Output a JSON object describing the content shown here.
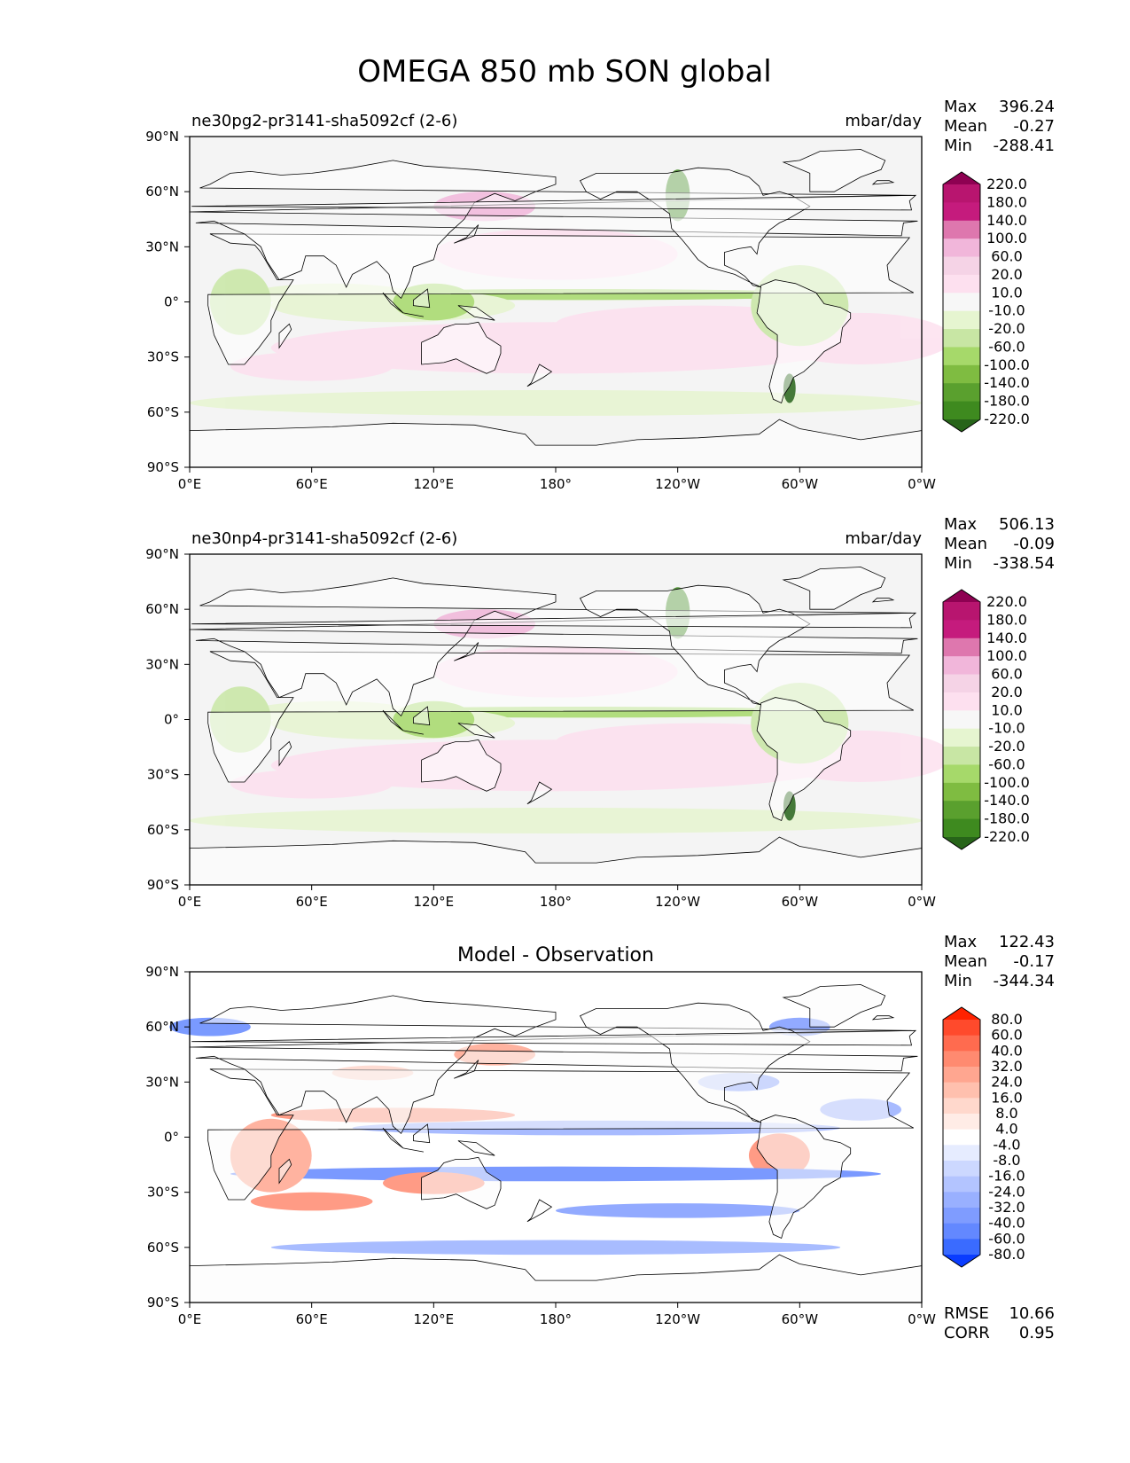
{
  "figure": {
    "title": "OMEGA 850 mb SON global"
  },
  "x_ticks": [
    "0°E",
    "60°E",
    "120°E",
    "180°",
    "120°W",
    "60°W",
    "0°W"
  ],
  "y_ticks": [
    "90°N",
    "60°N",
    "30°N",
    "0°",
    "30°S",
    "60°S",
    "90°S"
  ],
  "stat_labels": {
    "max": "Max",
    "mean": "Mean",
    "min": "Min",
    "rmse": "RMSE",
    "corr": "CORR"
  },
  "panels": [
    {
      "left_title": "ne30pg2-pr3141-sha5092cf (2-6)",
      "center_title": "",
      "units": "mbar/day",
      "stats": {
        "max": "396.24",
        "mean": "-0.27",
        "min": "-288.41"
      },
      "colorbar_labels": [
        "220.0",
        "180.0",
        "140.0",
        "100.0",
        "60.0",
        "20.0",
        "10.0",
        "-10.0",
        "-20.0",
        "-60.0",
        "-100.0",
        "-140.0",
        "-180.0",
        "-220.0"
      ]
    },
    {
      "left_title": "ne30np4-pr3141-sha5092cf (2-6)",
      "center_title": "",
      "units": "mbar/day",
      "stats": {
        "max": "506.13",
        "mean": "-0.09",
        "min": "-338.54"
      },
      "colorbar_labels": [
        "220.0",
        "180.0",
        "140.0",
        "100.0",
        "60.0",
        "20.0",
        "10.0",
        "-10.0",
        "-20.0",
        "-60.0",
        "-100.0",
        "-140.0",
        "-180.0",
        "-220.0"
      ]
    },
    {
      "left_title": "",
      "center_title": "Model - Observation",
      "units": "",
      "stats": {
        "max": "122.43",
        "mean": "-0.17",
        "min": "-344.34",
        "rmse": "10.66",
        "corr": "0.95"
      },
      "colorbar_labels": [
        "80.0",
        "60.0",
        "40.0",
        "32.0",
        "24.0",
        "16.0",
        "8.0",
        "4.0",
        "-4.0",
        "-8.0",
        "-16.0",
        "-24.0",
        "-32.0",
        "-40.0",
        "-60.0",
        "-80.0"
      ]
    }
  ],
  "colors": {
    "piyg": [
      "#8e0152",
      "#b8156f",
      "#c51b7d",
      "#de77ae",
      "#f1b6da",
      "#f5d3e6",
      "#fde0ef",
      "#f7f7f7",
      "#e6f5d0",
      "#c8e6a4",
      "#a6d96a",
      "#7fbc41",
      "#5aa02e",
      "#3e8a1f",
      "#276419"
    ],
    "bwr": [
      "#ff2200",
      "#ff4a2c",
      "#ff6b4f",
      "#ff8a70",
      "#ffa690",
      "#ffc0ae",
      "#ffd8cc",
      "#ffece6",
      "#ffffff",
      "#e6ecff",
      "#ccd8ff",
      "#b3c4ff",
      "#99b0ff",
      "#7f9cff",
      "#6388ff",
      "#3a6bff",
      "#0a3cff"
    ],
    "land_fill": "#ffffff",
    "ocean_mod": "#f4f4f4",
    "coast": "#000000"
  }
}
